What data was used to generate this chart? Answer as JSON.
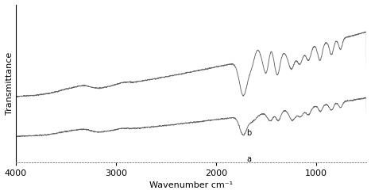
{
  "xlabel": "Wavenumber cm⁻¹",
  "ylabel": "Transmittance",
  "xlim": [
    4000,
    500
  ],
  "xticks": [
    4000,
    3000,
    2000,
    1000
  ],
  "background_color": "#ffffff",
  "line_color": "#666666",
  "label_a": "a",
  "label_b": "b",
  "figsize": [
    4.67,
    2.45
  ],
  "dpi": 100,
  "noise_seed": 42,
  "noise_amplitude": 0.003
}
